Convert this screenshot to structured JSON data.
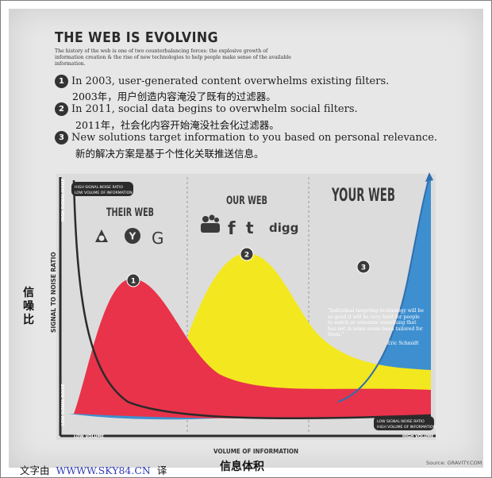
{
  "header": {
    "title": "THE WEB IS EVOLVING",
    "subtitle": "The history of the web is one of two counterbalancing forces: the explosive growth of information creation & the rise of new technologies to help people make sense of the available information."
  },
  "items": [
    {
      "number": "1",
      "text": "In 2003, user-generated content overwhelms existing filters.",
      "zh": "2003年，用户创造内容淹没了既有的过滤器。"
    },
    {
      "number": "2",
      "text": "In 2011, social data begins to overwhelm social filters.",
      "zh": "2011年，社会化内容开始淹没社会化过滤器。"
    },
    {
      "number": "3",
      "text": "New solutions target information to you based on personal relevance.",
      "zh": "新的解决方案是基于个性化关联推送信息。"
    }
  ],
  "chart": {
    "label_high_ratio": "HIGH SIGNAL:NOISE RATIO",
    "label_low_volume": "LOW VOLUME OF INFORMATION",
    "label_low_ratio": "LOW SIGNAL:NOISE RATIO",
    "label_high_volume": "HIGH VOLUME OF INFORMATION",
    "y_axis_top": "HIGH SIGNAL:NOISE",
    "y_axis_bottom": "LOW SIGNAL:NOISE",
    "y_axis_title": "SIGNAL TO NOISE RATIO",
    "y_axis_title_zh": "信噪比",
    "x_axis_left": "LOW VOLUME",
    "x_axis_right": "HIGH VOLUME",
    "x_axis_title": "VOLUME OF INFORMATION",
    "x_axis_title_zh": "信息体积",
    "sections": [
      {
        "title": "THEIR WEB",
        "marker": "1"
      },
      {
        "title": "OUR WEB",
        "marker": "2"
      },
      {
        "title": "YOUR WEB",
        "marker": "3"
      }
    ],
    "their_web_logos": [
      "A",
      "Y",
      "G"
    ],
    "our_web_logos": [
      "f",
      "t",
      "digg"
    ],
    "quote": "\"Individual targeting technology will be so good it will be very hard for people to watch or consume something that has not in some sense been tailored for them.\"",
    "quote_author": "– Eric Schmidt",
    "colors": {
      "red": "#e8334a",
      "yellow": "#f3e81f",
      "blue": "#3d8fd0",
      "dark": "#2b2b2b"
    }
  },
  "footer": {
    "credit_prefix": "文字由",
    "credit_site": "WWWW.SKY84.CN",
    "credit_suffix": "译",
    "source": "Source: GRAVITY.COM"
  }
}
